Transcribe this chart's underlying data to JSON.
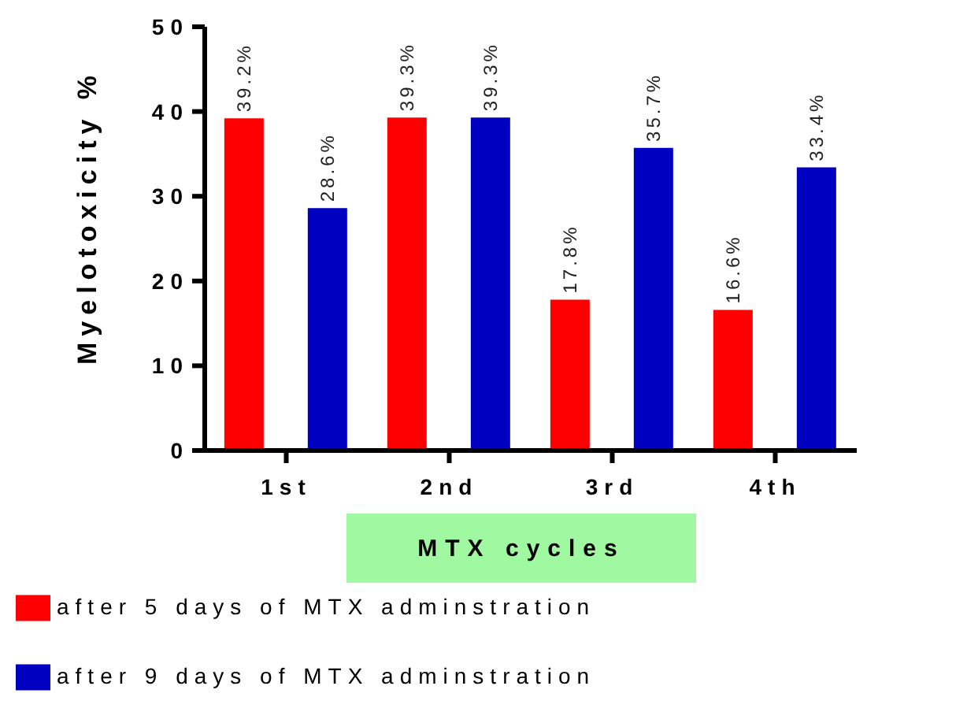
{
  "chart_data": {
    "type": "bar",
    "xlabel": "MTX cycles",
    "ylabel": "Myelotoxicity %",
    "categories": [
      "1st",
      "2nd",
      "3rd",
      "4th"
    ],
    "series": [
      {
        "name": "after 5 days of MTX adminstration",
        "color": "#ff0000",
        "values": [
          39.2,
          39.3,
          17.8,
          16.6
        ],
        "value_labels": [
          "39.2%",
          "39.3%",
          "17.8%",
          "16.6%"
        ]
      },
      {
        "name": "after 9 days of MTX adminstration",
        "color": "#0000c0",
        "values": [
          28.6,
          39.3,
          35.7,
          33.4
        ],
        "value_labels": [
          "28.6%",
          "39.3%",
          "35.7%",
          "33.4%"
        ]
      }
    ],
    "ylim": [
      0,
      50
    ],
    "yticks": [
      0,
      10,
      20,
      30,
      40,
      50
    ],
    "grid": false,
    "legend": "bottom"
  }
}
